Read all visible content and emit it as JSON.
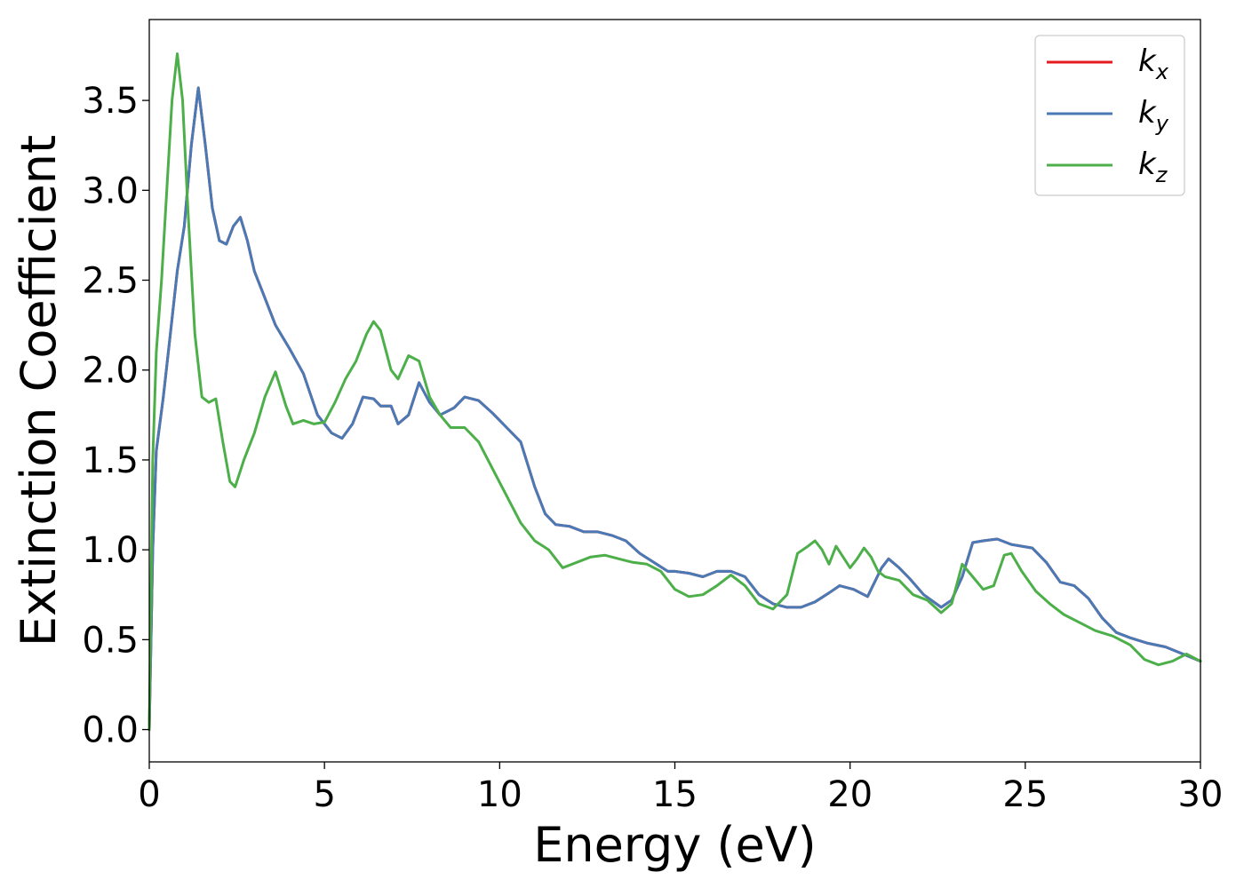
{
  "chart_data": {
    "type": "line",
    "xlabel": "Energy (eV)",
    "ylabel": "Extinction Coefficient",
    "xlim": [
      0,
      30
    ],
    "ylim": [
      -0.18,
      3.95
    ],
    "xticks": [
      0,
      5,
      10,
      15,
      20,
      25,
      30
    ],
    "xtick_labels": [
      "0",
      "5",
      "10",
      "15",
      "20",
      "25",
      "30"
    ],
    "yticks": [
      0.0,
      0.5,
      1.0,
      1.5,
      2.0,
      2.5,
      3.0,
      3.5
    ],
    "ytick_labels": [
      "0.0",
      "0.5",
      "1.0",
      "1.5",
      "2.0",
      "2.5",
      "3.0",
      "3.5"
    ],
    "grid": false,
    "legend_position": "top-right",
    "series": [
      {
        "name": "k_x",
        "label_main": "k",
        "label_sub": "x",
        "color": "#e41a1c",
        "x": [
          0,
          0.1,
          0.2,
          0.4,
          0.6,
          0.8,
          1.0,
          1.2,
          1.4,
          1.6,
          1.8,
          2.0,
          2.2,
          2.4,
          2.6,
          2.8,
          3.0,
          3.2,
          3.6,
          4.0,
          4.4,
          4.8,
          5.2,
          5.5,
          5.8,
          6.1,
          6.4,
          6.6,
          6.9,
          7.1,
          7.4,
          7.7,
          8.0,
          8.3,
          8.7,
          9.0,
          9.4,
          9.8,
          10.2,
          10.6,
          11.0,
          11.3,
          11.6,
          12.0,
          12.4,
          12.8,
          13.2,
          13.6,
          14.0,
          14.4,
          14.8,
          15.0,
          15.4,
          15.8,
          16.2,
          16.6,
          17.0,
          17.4,
          17.8,
          18.2,
          18.6,
          19.0,
          19.4,
          19.7,
          20.1,
          20.5,
          20.9,
          21.1,
          21.4,
          21.7,
          22.1,
          22.6,
          22.9,
          23.2,
          23.5,
          23.8,
          24.2,
          24.6,
          24.9,
          25.2,
          25.6,
          26.0,
          26.4,
          26.8,
          27.2,
          27.6,
          28.0,
          28.5,
          29.0,
          29.5,
          30.0
        ],
        "values": [
          0.0,
          1.0,
          1.55,
          1.85,
          2.2,
          2.55,
          2.8,
          3.25,
          3.57,
          3.25,
          2.9,
          2.72,
          2.7,
          2.8,
          2.85,
          2.72,
          2.55,
          2.45,
          2.25,
          2.12,
          1.98,
          1.75,
          1.65,
          1.62,
          1.7,
          1.85,
          1.84,
          1.8,
          1.8,
          1.7,
          1.75,
          1.93,
          1.82,
          1.75,
          1.79,
          1.85,
          1.83,
          1.76,
          1.68,
          1.6,
          1.35,
          1.2,
          1.14,
          1.13,
          1.1,
          1.1,
          1.08,
          1.05,
          0.98,
          0.93,
          0.88,
          0.88,
          0.87,
          0.85,
          0.88,
          0.88,
          0.85,
          0.75,
          0.7,
          0.68,
          0.68,
          0.71,
          0.76,
          0.8,
          0.78,
          0.74,
          0.9,
          0.95,
          0.9,
          0.84,
          0.75,
          0.68,
          0.72,
          0.85,
          1.04,
          1.05,
          1.06,
          1.03,
          1.02,
          1.01,
          0.93,
          0.82,
          0.8,
          0.73,
          0.62,
          0.54,
          0.51,
          0.48,
          0.46,
          0.42,
          0.38
        ]
      },
      {
        "name": "k_y",
        "label_main": "k",
        "label_sub": "y",
        "color": "#4a7ab5",
        "x": [
          0,
          0.1,
          0.2,
          0.4,
          0.6,
          0.8,
          1.0,
          1.2,
          1.4,
          1.6,
          1.8,
          2.0,
          2.2,
          2.4,
          2.6,
          2.8,
          3.0,
          3.2,
          3.6,
          4.0,
          4.4,
          4.8,
          5.2,
          5.5,
          5.8,
          6.1,
          6.4,
          6.6,
          6.9,
          7.1,
          7.4,
          7.7,
          8.0,
          8.3,
          8.7,
          9.0,
          9.4,
          9.8,
          10.2,
          10.6,
          11.0,
          11.3,
          11.6,
          12.0,
          12.4,
          12.8,
          13.2,
          13.6,
          14.0,
          14.4,
          14.8,
          15.0,
          15.4,
          15.8,
          16.2,
          16.6,
          17.0,
          17.4,
          17.8,
          18.2,
          18.6,
          19.0,
          19.4,
          19.7,
          20.1,
          20.5,
          20.9,
          21.1,
          21.4,
          21.7,
          22.1,
          22.6,
          22.9,
          23.2,
          23.5,
          23.8,
          24.2,
          24.6,
          24.9,
          25.2,
          25.6,
          26.0,
          26.4,
          26.8,
          27.2,
          27.6,
          28.0,
          28.5,
          29.0,
          29.5,
          30.0
        ],
        "values": [
          0.0,
          1.0,
          1.55,
          1.85,
          2.2,
          2.55,
          2.8,
          3.25,
          3.57,
          3.25,
          2.9,
          2.72,
          2.7,
          2.8,
          2.85,
          2.72,
          2.55,
          2.45,
          2.25,
          2.12,
          1.98,
          1.75,
          1.65,
          1.62,
          1.7,
          1.85,
          1.84,
          1.8,
          1.8,
          1.7,
          1.75,
          1.93,
          1.82,
          1.75,
          1.79,
          1.85,
          1.83,
          1.76,
          1.68,
          1.6,
          1.35,
          1.2,
          1.14,
          1.13,
          1.1,
          1.1,
          1.08,
          1.05,
          0.98,
          0.93,
          0.88,
          0.88,
          0.87,
          0.85,
          0.88,
          0.88,
          0.85,
          0.75,
          0.7,
          0.68,
          0.68,
          0.71,
          0.76,
          0.8,
          0.78,
          0.74,
          0.9,
          0.95,
          0.9,
          0.84,
          0.75,
          0.68,
          0.72,
          0.85,
          1.04,
          1.05,
          1.06,
          1.03,
          1.02,
          1.01,
          0.93,
          0.82,
          0.8,
          0.73,
          0.62,
          0.54,
          0.51,
          0.48,
          0.46,
          0.42,
          0.38
        ]
      },
      {
        "name": "k_z",
        "label_main": "k",
        "label_sub": "z",
        "color": "#4daf4a",
        "x": [
          0,
          0.1,
          0.2,
          0.35,
          0.5,
          0.65,
          0.8,
          0.95,
          1.1,
          1.3,
          1.5,
          1.7,
          1.9,
          2.1,
          2.3,
          2.45,
          2.7,
          3.0,
          3.3,
          3.6,
          3.9,
          4.1,
          4.4,
          4.7,
          5.0,
          5.3,
          5.6,
          5.9,
          6.2,
          6.4,
          6.6,
          6.9,
          7.1,
          7.4,
          7.7,
          8.0,
          8.3,
          8.6,
          9.0,
          9.4,
          9.8,
          10.2,
          10.6,
          11.0,
          11.4,
          11.8,
          12.2,
          12.6,
          13.0,
          13.4,
          13.8,
          14.2,
          14.6,
          15.0,
          15.4,
          15.8,
          16.2,
          16.6,
          17.0,
          17.4,
          17.8,
          18.2,
          18.5,
          18.8,
          19.0,
          19.2,
          19.4,
          19.6,
          19.8,
          20.0,
          20.2,
          20.4,
          20.6,
          20.8,
          21.0,
          21.4,
          21.8,
          22.2,
          22.6,
          22.9,
          23.2,
          23.5,
          23.8,
          24.1,
          24.4,
          24.6,
          24.9,
          25.3,
          25.7,
          26.1,
          26.5,
          27.0,
          27.5,
          28.0,
          28.4,
          28.8,
          29.2,
          29.6,
          30.0
        ],
        "values": [
          0.0,
          1.5,
          2.1,
          2.5,
          3.0,
          3.5,
          3.76,
          3.5,
          2.9,
          2.2,
          1.85,
          1.82,
          1.84,
          1.6,
          1.38,
          1.35,
          1.5,
          1.65,
          1.85,
          1.99,
          1.8,
          1.7,
          1.72,
          1.7,
          1.71,
          1.82,
          1.95,
          2.05,
          2.2,
          2.27,
          2.22,
          2.0,
          1.95,
          2.08,
          2.05,
          1.85,
          1.75,
          1.68,
          1.68,
          1.6,
          1.45,
          1.3,
          1.15,
          1.05,
          1.0,
          0.9,
          0.93,
          0.96,
          0.97,
          0.95,
          0.93,
          0.92,
          0.88,
          0.78,
          0.74,
          0.75,
          0.8,
          0.86,
          0.8,
          0.7,
          0.67,
          0.75,
          0.98,
          1.02,
          1.05,
          1.0,
          0.92,
          1.02,
          0.96,
          0.9,
          0.95,
          1.01,
          0.96,
          0.88,
          0.85,
          0.83,
          0.75,
          0.72,
          0.65,
          0.7,
          0.92,
          0.85,
          0.78,
          0.8,
          0.97,
          0.98,
          0.88,
          0.77,
          0.7,
          0.64,
          0.6,
          0.55,
          0.52,
          0.47,
          0.39,
          0.36,
          0.38,
          0.42,
          0.38
        ]
      }
    ]
  }
}
